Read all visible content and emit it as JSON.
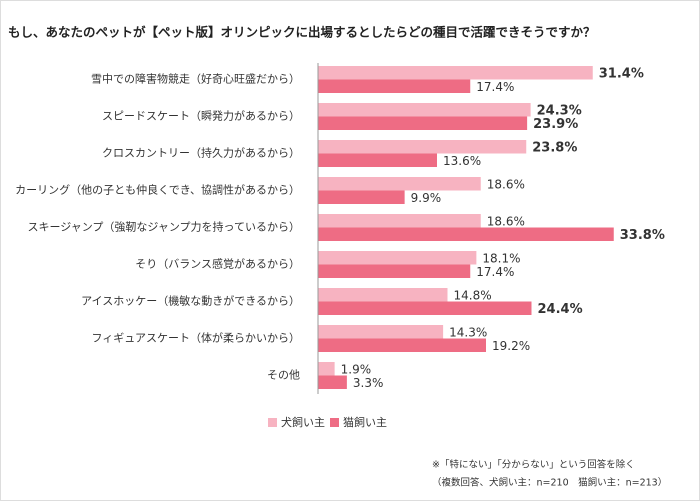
{
  "chart_data": {
    "type": "bar",
    "orientation": "horizontal",
    "title": "もし、あなたのペットが【ペット版】オリンピックに出場するとしたらどの種目で活躍できそうですか？",
    "categories": [
      "雪中での障害物競走（好奇心旺盛だから）",
      "スピードスケート（瞬発力があるから）",
      "クロスカントリー（持久力があるから）",
      "カーリング（他の子とも仲良くでき、協調性があるから）",
      "スキージャンプ（強靭なジャンプ力を持っているから）",
      "そり（バランス感覚があるから）",
      "アイスホッケー（機敏な動きができるから）",
      "フィギュアスケート（体が柔らかいから）",
      "その他"
    ],
    "series": [
      {
        "name": "犬飼い主",
        "color": "#f7b3c1",
        "values": [
          31.4,
          24.3,
          23.8,
          18.6,
          18.6,
          18.1,
          14.8,
          14.3,
          1.9
        ],
        "value_labels": [
          "31.4%",
          "24.3%",
          "23.8%",
          "18.6%",
          "18.6%",
          "18.1%",
          "14.8%",
          "14.3%",
          "1.9%"
        ],
        "label_colors": [
          "#c0262c",
          "#c0262c",
          "#c0262c",
          "#333333",
          "#333333",
          "#333333",
          "#333333",
          "#333333",
          "#333333"
        ]
      },
      {
        "name": "猫飼い主",
        "color": "#ee6c84",
        "values": [
          17.4,
          23.9,
          13.6,
          9.9,
          33.8,
          17.4,
          24.4,
          19.2,
          3.3
        ],
        "value_labels": [
          "17.4%",
          "23.9%",
          "13.6%",
          "9.9%",
          "33.8%",
          "17.4%",
          "24.4%",
          "19.2%",
          "3.3%"
        ],
        "label_colors": [
          "#333333",
          "#c0262c",
          "#333333",
          "#333333",
          "#c0262c",
          "#333333",
          "#c0262c",
          "#333333",
          "#333333"
        ]
      }
    ],
    "highlight_color": "#c0262c",
    "xlim": [
      0,
      40
    ],
    "notes": [
      "※「特にない」「分からない」という回答を除く",
      "（複数回答、犬飼い主：n=210　猫飼い主：n=213）"
    ]
  }
}
